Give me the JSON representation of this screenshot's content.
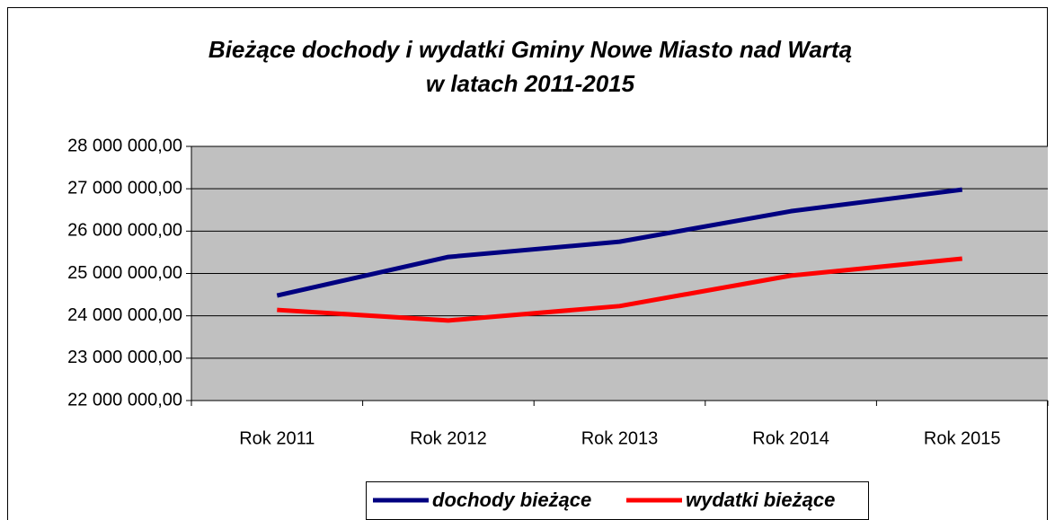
{
  "chart_data": {
    "type": "line",
    "title": [
      "Bieżące dochody i wydatki Gminy Nowe Miasto nad Wartą",
      "w latach 2011-2015"
    ],
    "categories": [
      "Rok 2011",
      "Rok 2012",
      "Rok 2013",
      "Rok 2014",
      "Rok 2015"
    ],
    "series": [
      {
        "name": "dochody bieżące",
        "color": "#000080",
        "values": [
          24480000,
          25390000,
          25750000,
          26470000,
          26980000
        ]
      },
      {
        "name": "wydatki bieżące",
        "color": "#ff0000",
        "values": [
          24140000,
          23890000,
          24230000,
          24950000,
          25350000
        ]
      }
    ],
    "ylim": [
      22000000,
      28000000
    ],
    "yticks": [
      {
        "value": 22000000,
        "label": "22 000 000,00"
      },
      {
        "value": 23000000,
        "label": "23 000 000,00"
      },
      {
        "value": 24000000,
        "label": "24 000 000,00"
      },
      {
        "value": 25000000,
        "label": "25 000 000,00"
      },
      {
        "value": 26000000,
        "label": "26 000 000,00"
      },
      {
        "value": 27000000,
        "label": "27 000 000,00"
      },
      {
        "value": 28000000,
        "label": "28 000 000,00"
      }
    ],
    "grid": true,
    "legend": "bottom",
    "plot_background": "#c0c0c0"
  }
}
